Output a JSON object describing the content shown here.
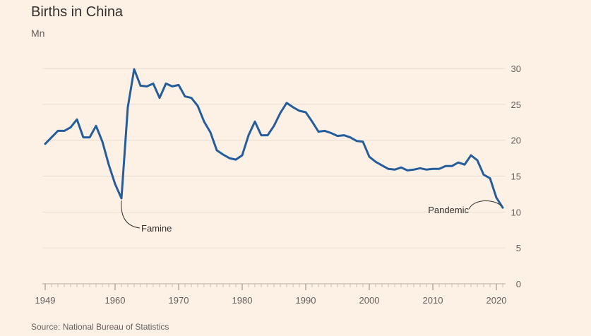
{
  "title": "Births in China",
  "unit": "Mn",
  "source": "Source: National Bureau of Statistics",
  "colors": {
    "background": "#fdf1e6",
    "line": "#255d9c",
    "grid": "#e8dbd0",
    "text": "#66605c"
  },
  "chart_data": {
    "type": "line",
    "title": "Births in China",
    "ylabel": "Mn",
    "xlim": [
      1949,
      2021
    ],
    "ylim": [
      0,
      30
    ],
    "y_ticks": [
      0,
      5,
      10,
      15,
      20,
      25,
      30
    ],
    "x_tick_labels": [
      "1949",
      "1960",
      "1970",
      "1980",
      "1990",
      "2000",
      "2010",
      "2020"
    ],
    "grid": true,
    "series": [
      {
        "x": [
          1949,
          1950,
          1951,
          1952,
          1953,
          1954,
          1955,
          1956,
          1957,
          1958,
          1959,
          1960,
          1961,
          1962,
          1963,
          1964,
          1965,
          1966,
          1967,
          1968,
          1969,
          1970,
          1971,
          1972,
          1973,
          1974,
          1975,
          1976,
          1977,
          1978,
          1979,
          1980,
          1981,
          1982,
          1983,
          1984,
          1985,
          1986,
          1987,
          1988,
          1989,
          1990,
          1991,
          1992,
          1993,
          1994,
          1995,
          1996,
          1997,
          1998,
          1999,
          2000,
          2001,
          2002,
          2003,
          2004,
          2005,
          2006,
          2007,
          2008,
          2009,
          2010,
          2011,
          2012,
          2013,
          2014,
          2015,
          2016,
          2017,
          2018,
          2019,
          2020,
          2021
        ],
        "values": [
          19.5,
          20.4,
          21.3,
          21.3,
          21.8,
          22.9,
          20.4,
          20.4,
          22.0,
          19.8,
          16.6,
          13.9,
          11.9,
          24.6,
          29.9,
          27.6,
          27.5,
          27.9,
          25.9,
          27.9,
          27.5,
          27.7,
          26.1,
          25.9,
          24.8,
          22.6,
          21.1,
          18.6,
          18.0,
          17.5,
          17.3,
          17.9,
          20.7,
          22.6,
          20.7,
          20.7,
          22.0,
          23.8,
          25.2,
          24.6,
          24.1,
          23.9,
          22.6,
          21.2,
          21.3,
          21.0,
          20.6,
          20.7,
          20.4,
          19.9,
          19.8,
          17.7,
          17.0,
          16.5,
          16.0,
          15.9,
          16.2,
          15.8,
          15.9,
          16.1,
          15.9,
          16.0,
          16.0,
          16.4,
          16.4,
          16.9,
          16.6,
          17.9,
          17.2,
          15.2,
          14.7,
          12.0,
          10.6
        ]
      }
    ],
    "annotations": [
      {
        "text": "Famine",
        "x": 1961,
        "y": 11.9
      },
      {
        "text": "Pandemic",
        "x": 2021,
        "y": 10.6
      }
    ]
  }
}
